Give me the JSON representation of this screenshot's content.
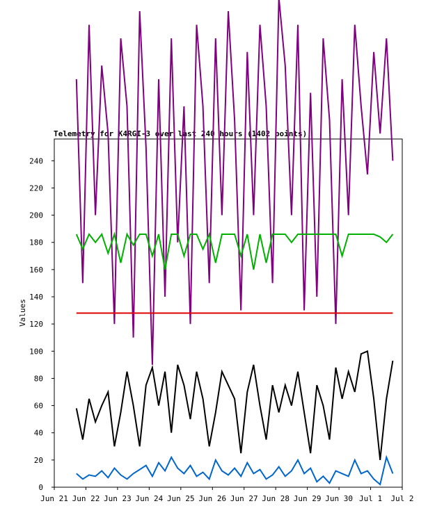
{
  "chart_data": {
    "type": "line",
    "title": "Telemetry for K4RGI-3 over last 240 hours (1402 points)",
    "y_label": "Values",
    "xlim": [
      0,
      11
    ],
    "ylim": [
      0,
      256
    ],
    "xticks": [
      {
        "value": 0,
        "label": "Jun 21"
      },
      {
        "value": 1,
        "label": "Jun 22"
      },
      {
        "value": 2,
        "label": "Jun 23"
      },
      {
        "value": 3,
        "label": "Jun 24"
      },
      {
        "value": 4,
        "label": "Jun 25"
      },
      {
        "value": 5,
        "label": "Jun 26"
      },
      {
        "value": 6,
        "label": "Jun 27"
      },
      {
        "value": 7,
        "label": "Jun 28"
      },
      {
        "value": 8,
        "label": "Jun 29"
      },
      {
        "value": 9,
        "label": "Jun 30"
      },
      {
        "value": 10,
        "label": "Jul 1"
      },
      {
        "value": 11,
        "label": "Jul 2"
      }
    ],
    "yticks": [
      0,
      20,
      40,
      60,
      80,
      100,
      120,
      140,
      160,
      180,
      200,
      220,
      240
    ],
    "grid": false,
    "x": [
      0.7,
      0.9,
      1.1,
      1.3,
      1.5,
      1.7,
      1.9,
      2.1,
      2.3,
      2.5,
      2.7,
      2.9,
      3.1,
      3.3,
      3.5,
      3.7,
      3.9,
      4.1,
      4.3,
      4.5,
      4.7,
      4.9,
      5.1,
      5.3,
      5.5,
      5.7,
      5.9,
      6.1,
      6.3,
      6.5,
      6.7,
      6.9,
      7.1,
      7.3,
      7.5,
      7.7,
      7.9,
      8.1,
      8.3,
      8.5,
      8.7,
      8.9,
      9.1,
      9.3,
      9.5,
      9.7,
      9.9,
      10.1,
      10.3,
      10.5,
      10.7
    ],
    "series": [
      {
        "color": "#800080",
        "values": [
          300,
          150,
          340,
          200,
          310,
          260,
          120,
          330,
          280,
          110,
          350,
          250,
          90,
          300,
          140,
          330,
          180,
          280,
          120,
          340,
          280,
          150,
          330,
          200,
          350,
          270,
          130,
          320,
          200,
          340,
          280,
          150,
          360,
          310,
          200,
          340,
          130,
          290,
          140,
          330,
          270,
          120,
          300,
          200,
          340,
          280,
          230,
          320,
          260,
          330,
          240
        ]
      },
      {
        "color": "#00b000",
        "values": [
          186,
          175,
          186,
          180,
          186,
          172,
          186,
          165,
          186,
          178,
          186,
          186,
          170,
          186,
          160,
          186,
          186,
          170,
          186,
          186,
          175,
          186,
          165,
          186,
          186,
          186,
          170,
          186,
          160,
          186,
          165,
          186,
          186,
          186,
          180,
          186,
          186,
          186,
          186,
          186,
          186,
          186,
          170,
          186,
          186,
          186,
          186,
          186,
          184,
          180,
          186
        ]
      },
      {
        "color": "#dd0000",
        "values": [
          128,
          128,
          128,
          128,
          128,
          128,
          128,
          128,
          128,
          128,
          128,
          128,
          128,
          128,
          128,
          128,
          128,
          128,
          128,
          128,
          128,
          128,
          128,
          128,
          128,
          128,
          128,
          128,
          128,
          128,
          128,
          128,
          128,
          128,
          128,
          128,
          128,
          128,
          128,
          128,
          128,
          128,
          128,
          128,
          128,
          128,
          128,
          128,
          128,
          128,
          128
        ]
      },
      {
        "color": "#000000",
        "values": [
          58,
          35,
          65,
          48,
          60,
          70,
          30,
          55,
          85,
          60,
          30,
          75,
          88,
          60,
          85,
          40,
          90,
          75,
          50,
          85,
          65,
          30,
          55,
          85,
          75,
          65,
          25,
          70,
          90,
          60,
          35,
          75,
          55,
          75,
          60,
          85,
          55,
          25,
          75,
          60,
          35,
          88,
          65,
          85,
          70,
          98,
          100,
          65,
          20,
          65,
          93
        ]
      },
      {
        "color": "#0066cc",
        "values": [
          10,
          6,
          9,
          8,
          12,
          7,
          14,
          9,
          6,
          10,
          13,
          16,
          8,
          18,
          12,
          22,
          14,
          10,
          16,
          8,
          11,
          6,
          20,
          12,
          9,
          14,
          8,
          18,
          10,
          13,
          6,
          9,
          15,
          8,
          12,
          20,
          10,
          14,
          4,
          8,
          3,
          12,
          10,
          8,
          20,
          10,
          12,
          6,
          2,
          22,
          10
        ]
      }
    ]
  }
}
